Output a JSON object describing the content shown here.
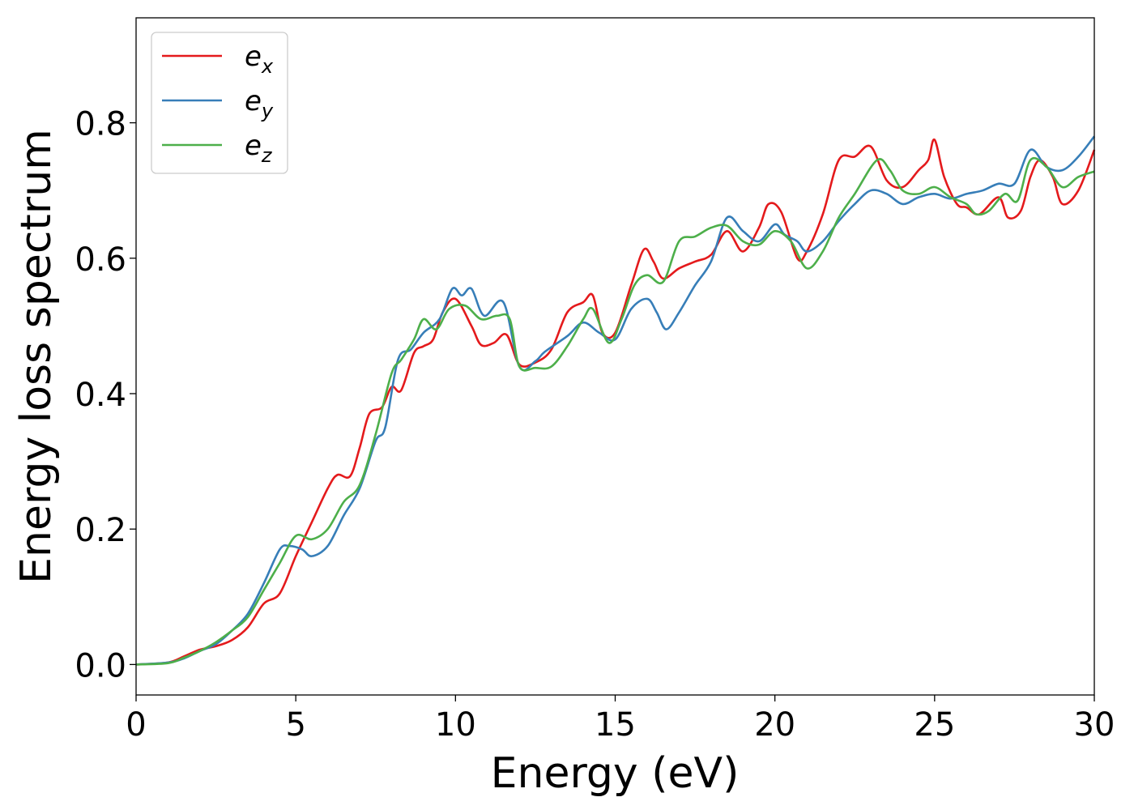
{
  "chart_data": {
    "type": "line",
    "title": "",
    "xlabel": "Energy (eV)",
    "ylabel": "Energy loss spectrum",
    "xlim": [
      0,
      30
    ],
    "ylim": [
      -0.045,
      0.955
    ],
    "xticks": [
      0,
      5,
      10,
      15,
      20,
      25,
      30
    ],
    "xtick_labels": [
      "0",
      "5",
      "10",
      "15",
      "20",
      "25",
      "30"
    ],
    "yticks": [
      0.0,
      0.2,
      0.4,
      0.6,
      0.8
    ],
    "ytick_labels": [
      "0.0",
      "0.2",
      "0.4",
      "0.6",
      "0.8"
    ],
    "grid": false,
    "legend": "top-left",
    "series": [
      {
        "name": "e",
        "subscript": "x",
        "color": "#e41a1c",
        "points": [
          [
            0,
            0
          ],
          [
            1,
            0.003
          ],
          [
            1.5,
            0.012
          ],
          [
            2,
            0.022
          ],
          [
            2.5,
            0.027
          ],
          [
            3,
            0.036
          ],
          [
            3.5,
            0.055
          ],
          [
            4,
            0.09
          ],
          [
            4.5,
            0.105
          ],
          [
            5,
            0.16
          ],
          [
            5.5,
            0.21
          ],
          [
            6,
            0.26
          ],
          [
            6.3,
            0.28
          ],
          [
            6.7,
            0.278
          ],
          [
            7,
            0.32
          ],
          [
            7.3,
            0.37
          ],
          [
            7.7,
            0.38
          ],
          [
            8,
            0.41
          ],
          [
            8.3,
            0.405
          ],
          [
            8.7,
            0.46
          ],
          [
            9,
            0.47
          ],
          [
            9.3,
            0.48
          ],
          [
            9.6,
            0.52
          ],
          [
            10,
            0.54
          ],
          [
            10.5,
            0.5
          ],
          [
            10.8,
            0.472
          ],
          [
            11.2,
            0.475
          ],
          [
            11.6,
            0.487
          ],
          [
            12,
            0.443
          ],
          [
            12.5,
            0.446
          ],
          [
            13,
            0.465
          ],
          [
            13.5,
            0.52
          ],
          [
            14,
            0.535
          ],
          [
            14.3,
            0.545
          ],
          [
            14.6,
            0.49
          ],
          [
            15,
            0.49
          ],
          [
            15.5,
            0.56
          ],
          [
            15.9,
            0.613
          ],
          [
            16.2,
            0.595
          ],
          [
            16.5,
            0.57
          ],
          [
            17,
            0.585
          ],
          [
            17.5,
            0.595
          ],
          [
            18,
            0.605
          ],
          [
            18.5,
            0.64
          ],
          [
            19,
            0.61
          ],
          [
            19.5,
            0.645
          ],
          [
            19.8,
            0.68
          ],
          [
            20.2,
            0.668
          ],
          [
            20.7,
            0.6
          ],
          [
            21,
            0.61
          ],
          [
            21.5,
            0.665
          ],
          [
            22,
            0.745
          ],
          [
            22.5,
            0.75
          ],
          [
            23,
            0.765
          ],
          [
            23.5,
            0.715
          ],
          [
            24,
            0.705
          ],
          [
            24.5,
            0.73
          ],
          [
            24.8,
            0.745
          ],
          [
            25,
            0.775
          ],
          [
            25.3,
            0.72
          ],
          [
            25.7,
            0.68
          ],
          [
            26,
            0.675
          ],
          [
            26.4,
            0.665
          ],
          [
            27,
            0.69
          ],
          [
            27.3,
            0.66
          ],
          [
            27.7,
            0.67
          ],
          [
            28,
            0.72
          ],
          [
            28.3,
            0.745
          ],
          [
            28.7,
            0.72
          ],
          [
            29,
            0.68
          ],
          [
            29.5,
            0.7
          ],
          [
            30,
            0.76
          ]
        ]
      },
      {
        "name": "e",
        "subscript": "y",
        "color": "#377eb8",
        "points": [
          [
            0,
            0
          ],
          [
            1,
            0.003
          ],
          [
            1.5,
            0.009
          ],
          [
            2,
            0.02
          ],
          [
            2.5,
            0.03
          ],
          [
            3,
            0.05
          ],
          [
            3.5,
            0.075
          ],
          [
            4,
            0.12
          ],
          [
            4.5,
            0.17
          ],
          [
            4.8,
            0.175
          ],
          [
            5.2,
            0.17
          ],
          [
            5.5,
            0.16
          ],
          [
            6,
            0.175
          ],
          [
            6.5,
            0.22
          ],
          [
            7,
            0.26
          ],
          [
            7.5,
            0.33
          ],
          [
            7.8,
            0.35
          ],
          [
            8.2,
            0.45
          ],
          [
            8.6,
            0.465
          ],
          [
            9,
            0.49
          ],
          [
            9.5,
            0.51
          ],
          [
            9.9,
            0.555
          ],
          [
            10.2,
            0.545
          ],
          [
            10.5,
            0.555
          ],
          [
            10.9,
            0.515
          ],
          [
            11.5,
            0.535
          ],
          [
            12,
            0.44
          ],
          [
            12.5,
            0.448
          ],
          [
            12.8,
            0.462
          ],
          [
            13.5,
            0.485
          ],
          [
            14,
            0.505
          ],
          [
            14.5,
            0.49
          ],
          [
            15,
            0.48
          ],
          [
            15.5,
            0.525
          ],
          [
            16,
            0.54
          ],
          [
            16.3,
            0.52
          ],
          [
            16.6,
            0.495
          ],
          [
            17,
            0.52
          ],
          [
            17.5,
            0.56
          ],
          [
            18,
            0.595
          ],
          [
            18.5,
            0.66
          ],
          [
            19,
            0.64
          ],
          [
            19.5,
            0.625
          ],
          [
            20,
            0.65
          ],
          [
            20.3,
            0.635
          ],
          [
            20.7,
            0.625
          ],
          [
            21,
            0.61
          ],
          [
            21.5,
            0.625
          ],
          [
            22,
            0.655
          ],
          [
            22.5,
            0.68
          ],
          [
            23,
            0.7
          ],
          [
            23.5,
            0.695
          ],
          [
            24,
            0.68
          ],
          [
            24.5,
            0.69
          ],
          [
            25,
            0.695
          ],
          [
            25.5,
            0.688
          ],
          [
            26,
            0.695
          ],
          [
            26.5,
            0.7
          ],
          [
            27,
            0.71
          ],
          [
            27.5,
            0.71
          ],
          [
            28,
            0.76
          ],
          [
            28.5,
            0.735
          ],
          [
            29,
            0.73
          ],
          [
            29.5,
            0.75
          ],
          [
            30,
            0.78
          ]
        ]
      },
      {
        "name": "e",
        "subscript": "z",
        "color": "#4daf4a",
        "points": [
          [
            0,
            0
          ],
          [
            1,
            0.002
          ],
          [
            1.5,
            0.01
          ],
          [
            2,
            0.02
          ],
          [
            2.5,
            0.033
          ],
          [
            3,
            0.05
          ],
          [
            3.5,
            0.07
          ],
          [
            4,
            0.11
          ],
          [
            4.5,
            0.15
          ],
          [
            5,
            0.19
          ],
          [
            5.5,
            0.185
          ],
          [
            6,
            0.2
          ],
          [
            6.5,
            0.24
          ],
          [
            7,
            0.265
          ],
          [
            7.5,
            0.34
          ],
          [
            8,
            0.43
          ],
          [
            8.3,
            0.45
          ],
          [
            8.7,
            0.48
          ],
          [
            9,
            0.51
          ],
          [
            9.4,
            0.495
          ],
          [
            9.8,
            0.525
          ],
          [
            10.3,
            0.53
          ],
          [
            10.8,
            0.51
          ],
          [
            11.3,
            0.515
          ],
          [
            11.7,
            0.51
          ],
          [
            12,
            0.44
          ],
          [
            12.5,
            0.438
          ],
          [
            13,
            0.44
          ],
          [
            13.5,
            0.47
          ],
          [
            14,
            0.51
          ],
          [
            14.3,
            0.525
          ],
          [
            14.8,
            0.475
          ],
          [
            15.2,
            0.51
          ],
          [
            15.6,
            0.56
          ],
          [
            16,
            0.575
          ],
          [
            16.5,
            0.565
          ],
          [
            17,
            0.625
          ],
          [
            17.5,
            0.632
          ],
          [
            18,
            0.645
          ],
          [
            18.5,
            0.648
          ],
          [
            19,
            0.625
          ],
          [
            19.5,
            0.62
          ],
          [
            20,
            0.64
          ],
          [
            20.5,
            0.625
          ],
          [
            21,
            0.585
          ],
          [
            21.5,
            0.61
          ],
          [
            22,
            0.66
          ],
          [
            22.5,
            0.695
          ],
          [
            23.2,
            0.745
          ],
          [
            23.6,
            0.73
          ],
          [
            24,
            0.7
          ],
          [
            24.5,
            0.695
          ],
          [
            25,
            0.705
          ],
          [
            25.5,
            0.69
          ],
          [
            26,
            0.68
          ],
          [
            26.3,
            0.665
          ],
          [
            26.7,
            0.67
          ],
          [
            27.2,
            0.695
          ],
          [
            27.6,
            0.685
          ],
          [
            28,
            0.745
          ],
          [
            28.5,
            0.735
          ],
          [
            29,
            0.705
          ],
          [
            29.5,
            0.72
          ],
          [
            30,
            0.728
          ]
        ]
      }
    ]
  }
}
